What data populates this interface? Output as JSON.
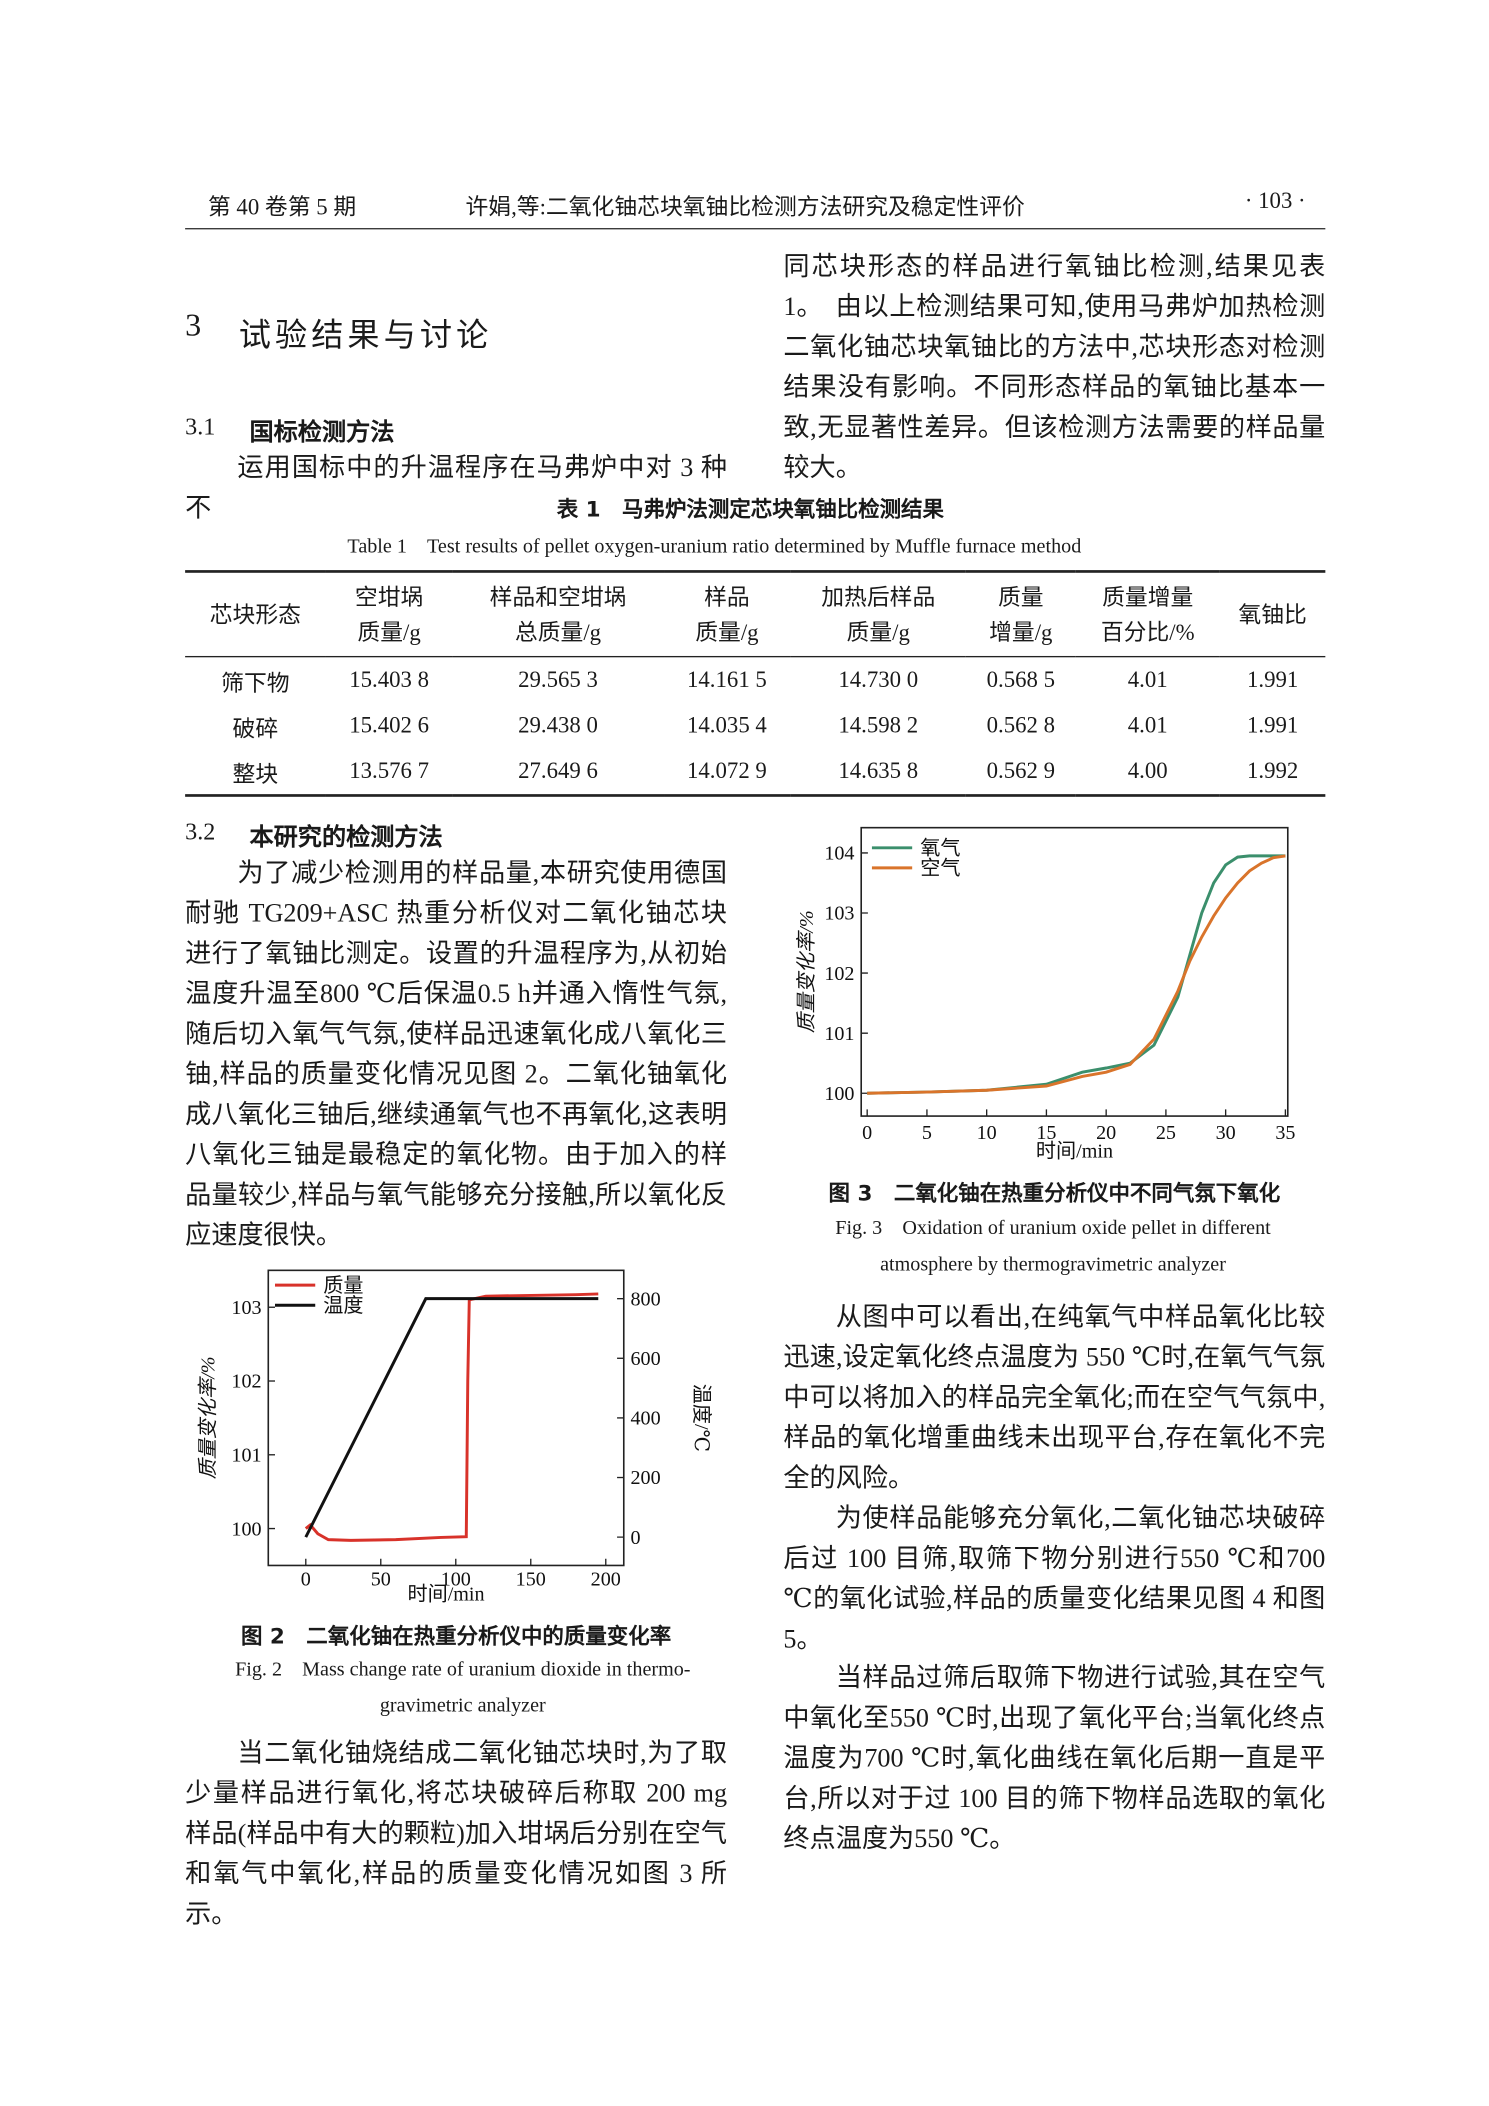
{
  "header": {
    "left": "第 40 卷第 5 期",
    "center": "许娟,等:二氧化铀芯块氧铀比检测方法研究及稳定性评价",
    "right": "· 103 ·"
  },
  "section": {
    "number": "3",
    "title": "试验结果与讨论"
  },
  "sec31": {
    "number": "3.1",
    "title": "国标检测方法",
    "para1_part1": "运用国标中的升温程序在马弗炉中对 3 种不",
    "para1_part2": "同芯块形态的样品进行氧铀比检测,结果见表 1。",
    "para2": "由以上检测结果可知,使用马弗炉加热检测二氧化铀芯块氧铀比的方法中,芯块形态对检测结果没有影响。不同形态样品的氧铀比基本一致,无显著性差异。但该检测方法需要的样品量较大。"
  },
  "table": {
    "caption_cn": "表 1　马弗炉法测定芯块氧铀比检测结果",
    "caption_en": "Table 1　Test results of pellet oxygen-uranium ratio determined by Muffle furnace method",
    "headers": [
      [
        "芯块形态"
      ],
      [
        "空坩埚",
        "质量/g"
      ],
      [
        "样品和空坩埚",
        "总质量/g"
      ],
      [
        "样品",
        "质量/g"
      ],
      [
        "加热后样品",
        "质量/g"
      ],
      [
        "质量",
        "增量/g"
      ],
      [
        "质量增量",
        "百分比/%"
      ],
      [
        "氧铀比"
      ]
    ],
    "rows": [
      [
        "筛下物",
        "15.403 8",
        "29.565 3",
        "14.161 5",
        "14.730 0",
        "0.568 5",
        "4.01",
        "1.991"
      ],
      [
        "破碎",
        "15.402 6",
        "29.438 0",
        "14.035 4",
        "14.598 2",
        "0.562 8",
        "4.01",
        "1.991"
      ],
      [
        "整块",
        "13.576 7",
        "27.649 6",
        "14.072 9",
        "14.635 8",
        "0.562 9",
        "4.00",
        "1.992"
      ]
    ]
  },
  "sec32": {
    "number": "3.2",
    "title": "本研究的检测方法",
    "para1": "为了减少检测用的样品量,本研究使用德国耐驰 TG209+ASC 热重分析仪对二氧化铀芯块进行了氧铀比测定。设置的升温程序为,从初始温度升温至800 ℃后保温0.5 h并通入惰性气氛,随后切入氧气气氛,使样品迅速氧化成八氧化三铀,样品的质量变化情况见图 2。二氧化铀氧化成八氧化三铀后,继续通氧气也不再氧化,这表明八氧化三铀是最稳定的氧化物。由于加入的样品量较少,样品与氧气能够充分接触,所以氧化反应速度很快。",
    "para2": "当二氧化铀烧结成二氧化铀芯块时,为了取少量样品进行氧化,将芯块破碎后称取 200 mg 样品(样品中有大的颗粒)加入坩埚后分别在空气和氧气中氧化,样品的质量变化情况如图 3 所示。",
    "para3": "从图中可以看出,在纯氧气中样品氧化比较迅速,设定氧化终点温度为 550 ℃时,在氧气气氛中可以将加入的样品完全氧化;而在空气气氛中,样品的氧化增重曲线未出现平台,存在氧化不完全的风险。",
    "para4": "为使样品能够充分氧化,二氧化铀芯块破碎后过 100 目筛,取筛下物分别进行550 ℃和700 ℃的氧化试验,样品的质量变化结果见图 4 和图 5。",
    "para5": "当样品过筛后取筛下物进行试验,其在空气中氧化至550 ℃时,出现了氧化平台;当氧化终点温度为700 ℃时,氧化曲线在氧化后期一直是平台,所以对于过 100 目的筛下物样品选取的氧化终点温度为550 ℃。"
  },
  "figure_captions": [
    {
      "cn": "图 2　二氧化铀在热重分析仪中的质量变化率",
      "en": "Fig. 2　Mass change rate of uranium dioxide in thermo-gravimetric analyzer"
    },
    {
      "cn": "图 3　二氧化铀在热重分析仪中不同气氛下氧化",
      "en": "Fig. 3　Oxidation of uranium oxide pellet in different atmosphere by thermogravimetric analyzer"
    }
  ],
  "chart_data": [
    {
      "type": "line",
      "x_label": "时间/min",
      "y_label": "质量变化率/%",
      "y2_label": "温度/℃",
      "xlim": [
        -25,
        212
      ],
      "xticks": [
        0,
        50,
        100,
        150,
        200
      ],
      "ylim": [
        99.5,
        103.5
      ],
      "yticks": [
        100,
        101,
        102,
        103
      ],
      "y2lim": [
        -95,
        895
      ],
      "y2ticks": [
        0,
        200,
        400,
        600,
        800
      ],
      "legend": "upper left",
      "series": [
        {
          "name": "质量",
          "color": "#d8322a",
          "x": [
            0,
            3,
            8,
            15,
            30,
            60,
            90,
            107,
            108,
            109,
            120,
            150,
            180,
            195
          ],
          "values": [
            100,
            100.05,
            99.93,
            99.85,
            99.84,
            99.85,
            99.88,
            99.89,
            102,
            103.1,
            103.15,
            103.16,
            103.17,
            103.18
          ]
        },
        {
          "name": "温度",
          "color": "#111111",
          "axis": "y2",
          "x": [
            0,
            80,
            195
          ],
          "values": [
            0,
            800,
            800
          ]
        }
      ]
    },
    {
      "type": "line",
      "x_label": "时间/min",
      "y_label": "质量变化率/%",
      "xlim": [
        -0.5,
        35.2
      ],
      "xticks": [
        0,
        5,
        10,
        15,
        20,
        25,
        30,
        35
      ],
      "ylim": [
        99.62,
        104.42
      ],
      "yticks": [
        100,
        101,
        102,
        103,
        104
      ],
      "legend": "upper left",
      "series": [
        {
          "name": "氧气",
          "color": "#3b8f6c",
          "x": [
            0,
            5,
            10,
            15,
            18,
            20,
            22,
            24,
            26,
            27,
            28,
            29,
            30,
            31,
            32,
            35
          ],
          "values": [
            100,
            100.02,
            100.05,
            100.15,
            100.35,
            100.42,
            100.5,
            100.8,
            101.6,
            102.3,
            103.0,
            103.5,
            103.8,
            103.93,
            103.95,
            103.95
          ]
        },
        {
          "name": "空气",
          "color": "#d9742b",
          "x": [
            0,
            5,
            10,
            15,
            18,
            20,
            22,
            24,
            26,
            27,
            28,
            29,
            30,
            31,
            32,
            33,
            34,
            35
          ],
          "values": [
            100,
            100.02,
            100.05,
            100.12,
            100.28,
            100.35,
            100.48,
            100.9,
            101.7,
            102.2,
            102.6,
            102.95,
            103.25,
            103.5,
            103.7,
            103.83,
            103.92,
            103.95
          ]
        }
      ]
    }
  ]
}
